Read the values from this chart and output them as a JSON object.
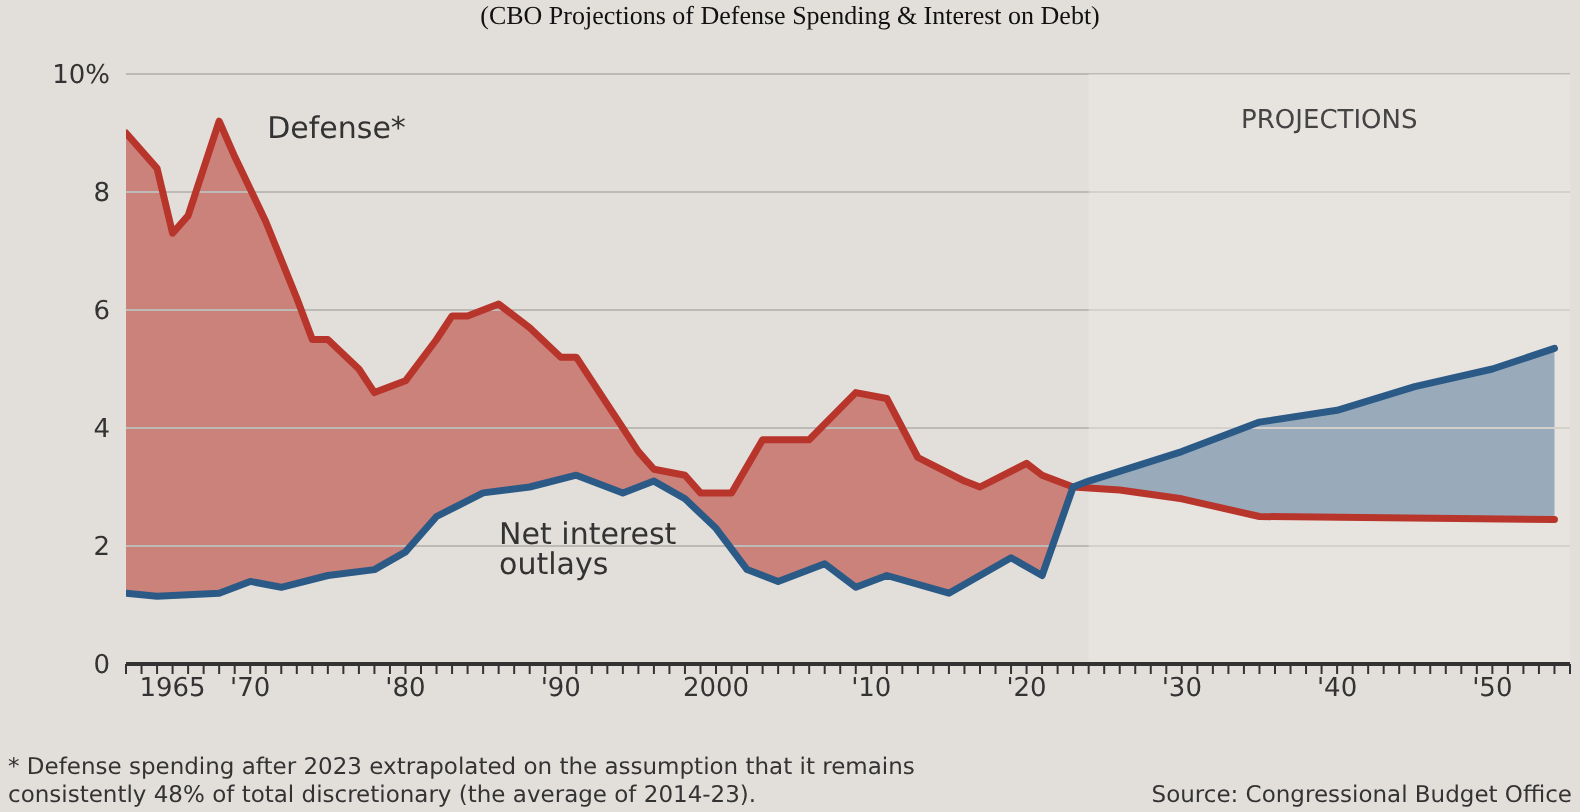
{
  "chart_data": {
    "type": "line",
    "title": "(CBO Projections of Defense Spending & Interest on Debt)",
    "xlim": [
      1962,
      2055
    ],
    "xticks": [
      {
        "value": 1962,
        "label": null
      },
      {
        "value": 1963,
        "label": null
      },
      {
        "value": 1964,
        "label": null
      },
      1965,
      {
        "value": 1966,
        "label": null
      },
      {
        "value": 1967,
        "label": null
      },
      {
        "value": 1968,
        "label": null
      },
      {
        "value": 1969,
        "label": null
      },
      {
        "value": 1970,
        "label": "'70"
      },
      {
        "value": 1971,
        "label": null
      },
      {
        "value": 1972,
        "label": null
      },
      {
        "value": 1973,
        "label": null
      },
      {
        "value": 1974,
        "label": null
      },
      {
        "value": 1975,
        "label": null
      },
      {
        "value": 1976,
        "label": null
      },
      {
        "value": 1977,
        "label": null
      },
      {
        "value": 1978,
        "label": null
      },
      {
        "value": 1979,
        "label": null
      },
      {
        "value": 1980,
        "label": "'80"
      },
      {
        "value": 1981,
        "label": null
      },
      {
        "value": 1982,
        "label": null
      },
      {
        "value": 1983,
        "label": null
      },
      {
        "value": 1984,
        "label": null
      },
      {
        "value": 1985,
        "label": null
      },
      {
        "value": 1986,
        "label": null
      },
      {
        "value": 1987,
        "label": null
      },
      {
        "value": 1988,
        "label": null
      },
      {
        "value": 1989,
        "label": null
      },
      {
        "value": 1990,
        "label": "'90"
      },
      {
        "value": 1991,
        "label": null
      },
      {
        "value": 1992,
        "label": null
      },
      {
        "value": 1993,
        "label": null
      },
      {
        "value": 1994,
        "label": null
      },
      {
        "value": 1995,
        "label": null
      },
      {
        "value": 1996,
        "label": null
      },
      {
        "value": 1997,
        "label": null
      },
      {
        "value": 1998,
        "label": null
      },
      {
        "value": 1999,
        "label": null
      },
      2000,
      {
        "value": 2001,
        "label": null
      },
      {
        "value": 2002,
        "label": null
      },
      {
        "value": 2003,
        "label": null
      },
      {
        "value": 2004,
        "label": null
      },
      {
        "value": 2005,
        "label": null
      },
      {
        "value": 2006,
        "label": null
      },
      {
        "value": 2007,
        "label": null
      },
      {
        "value": 2008,
        "label": null
      },
      {
        "value": 2009,
        "label": null
      },
      {
        "value": 2010,
        "label": "'10"
      },
      {
        "value": 2011,
        "label": null
      },
      {
        "value": 2012,
        "label": null
      },
      {
        "value": 2013,
        "label": null
      },
      {
        "value": 2014,
        "label": null
      },
      {
        "value": 2015,
        "label": null
      },
      {
        "value": 2016,
        "label": null
      },
      {
        "value": 2017,
        "label": null
      },
      {
        "value": 2018,
        "label": null
      },
      {
        "value": 2019,
        "label": null
      },
      {
        "value": 2020,
        "label": "'20"
      },
      {
        "value": 2021,
        "label": null
      },
      {
        "value": 2022,
        "label": null
      },
      {
        "value": 2023,
        "label": null
      },
      {
        "value": 2024,
        "label": null
      },
      {
        "value": 2025,
        "label": null
      },
      {
        "value": 2026,
        "label": null
      },
      {
        "value": 2027,
        "label": null
      },
      {
        "value": 2028,
        "label": null
      },
      {
        "value": 2029,
        "label": null
      },
      {
        "value": 2030,
        "label": "'30"
      },
      {
        "value": 2031,
        "label": null
      },
      {
        "value": 2032,
        "label": null
      },
      {
        "value": 2033,
        "label": null
      },
      {
        "value": 2034,
        "label": null
      },
      {
        "value": 2035,
        "label": null
      },
      {
        "value": 2036,
        "label": null
      },
      {
        "value": 2037,
        "label": null
      },
      {
        "value": 2038,
        "label": null
      },
      {
        "value": 2039,
        "label": null
      },
      {
        "value": 2040,
        "label": "'40"
      },
      {
        "value": 2041,
        "label": null
      },
      {
        "value": 2042,
        "label": null
      },
      {
        "value": 2043,
        "label": null
      },
      {
        "value": 2044,
        "label": null
      },
      {
        "value": 2045,
        "label": null
      },
      {
        "value": 2046,
        "label": null
      },
      {
        "value": 2047,
        "label": null
      },
      {
        "value": 2048,
        "label": null
      },
      {
        "value": 2049,
        "label": null
      },
      {
        "value": 2050,
        "label": "'50"
      },
      {
        "value": 2051,
        "label": null
      },
      {
        "value": 2052,
        "label": null
      },
      {
        "value": 2053,
        "label": null
      },
      {
        "value": 2054,
        "label": null
      },
      {
        "value": 2055,
        "label": null
      }
    ],
    "ylim": [
      0,
      10
    ],
    "yticks": [
      0,
      2,
      4,
      6,
      8,
      {
        "value": 10,
        "label": "10%"
      }
    ],
    "grid": "y",
    "series": [
      {
        "name": "Defense*",
        "color": "#b8352c",
        "x": [
          1962,
          1964,
          1965,
          1966,
          1968,
          1969,
          1971,
          1973,
          1974,
          1975,
          1977,
          1978,
          1980,
          1982,
          1983,
          1984,
          1986,
          1988,
          1990,
          1991,
          1993,
          1995,
          1996,
          1998,
          1999,
          2001,
          2003,
          2006,
          2009,
          2011,
          2013,
          2016,
          2017,
          2020,
          2021,
          2023,
          2026,
          2030,
          2035,
          2054
        ],
        "values": [
          9.0,
          8.4,
          7.3,
          7.6,
          9.2,
          8.6,
          7.5,
          6.2,
          5.5,
          5.5,
          5.0,
          4.6,
          4.8,
          5.5,
          5.9,
          5.9,
          6.1,
          5.7,
          5.2,
          5.2,
          4.4,
          3.6,
          3.3,
          3.2,
          2.9,
          2.9,
          3.8,
          3.8,
          4.6,
          4.5,
          3.5,
          3.1,
          3.0,
          3.4,
          3.2,
          3.0,
          2.95,
          2.8,
          2.5,
          2.45
        ]
      },
      {
        "name": "Net interest outlays",
        "color": "#2b5a86",
        "x": [
          1962,
          1964,
          1968,
          1970,
          1972,
          1975,
          1978,
          1980,
          1982,
          1985,
          1988,
          1991,
          1994,
          1996,
          1998,
          2000,
          2002,
          2004,
          2007,
          2009,
          2011,
          2015,
          2019,
          2021,
          2023,
          2024,
          2030,
          2035,
          2040,
          2045,
          2050,
          2054
        ],
        "values": [
          1.2,
          1.15,
          1.2,
          1.4,
          1.3,
          1.5,
          1.6,
          1.9,
          2.5,
          2.9,
          3.0,
          3.2,
          2.9,
          3.1,
          2.8,
          2.3,
          1.6,
          1.4,
          1.7,
          1.3,
          1.5,
          1.2,
          1.8,
          1.5,
          3.0,
          3.1,
          3.6,
          4.1,
          4.3,
          4.7,
          5.0,
          5.35
        ]
      }
    ],
    "bands": [
      {
        "axis": "x",
        "from": 2024,
        "to": 2055,
        "label": "PROJECTIONS",
        "color": "#ebe8e4"
      }
    ],
    "annotations": [
      "* Defense spending after 2023 extrapolated on the assumption that it remains consistently 48% of total discretionary (the average of 2014-23).",
      "Source: Congressional Budget Office"
    ]
  }
}
